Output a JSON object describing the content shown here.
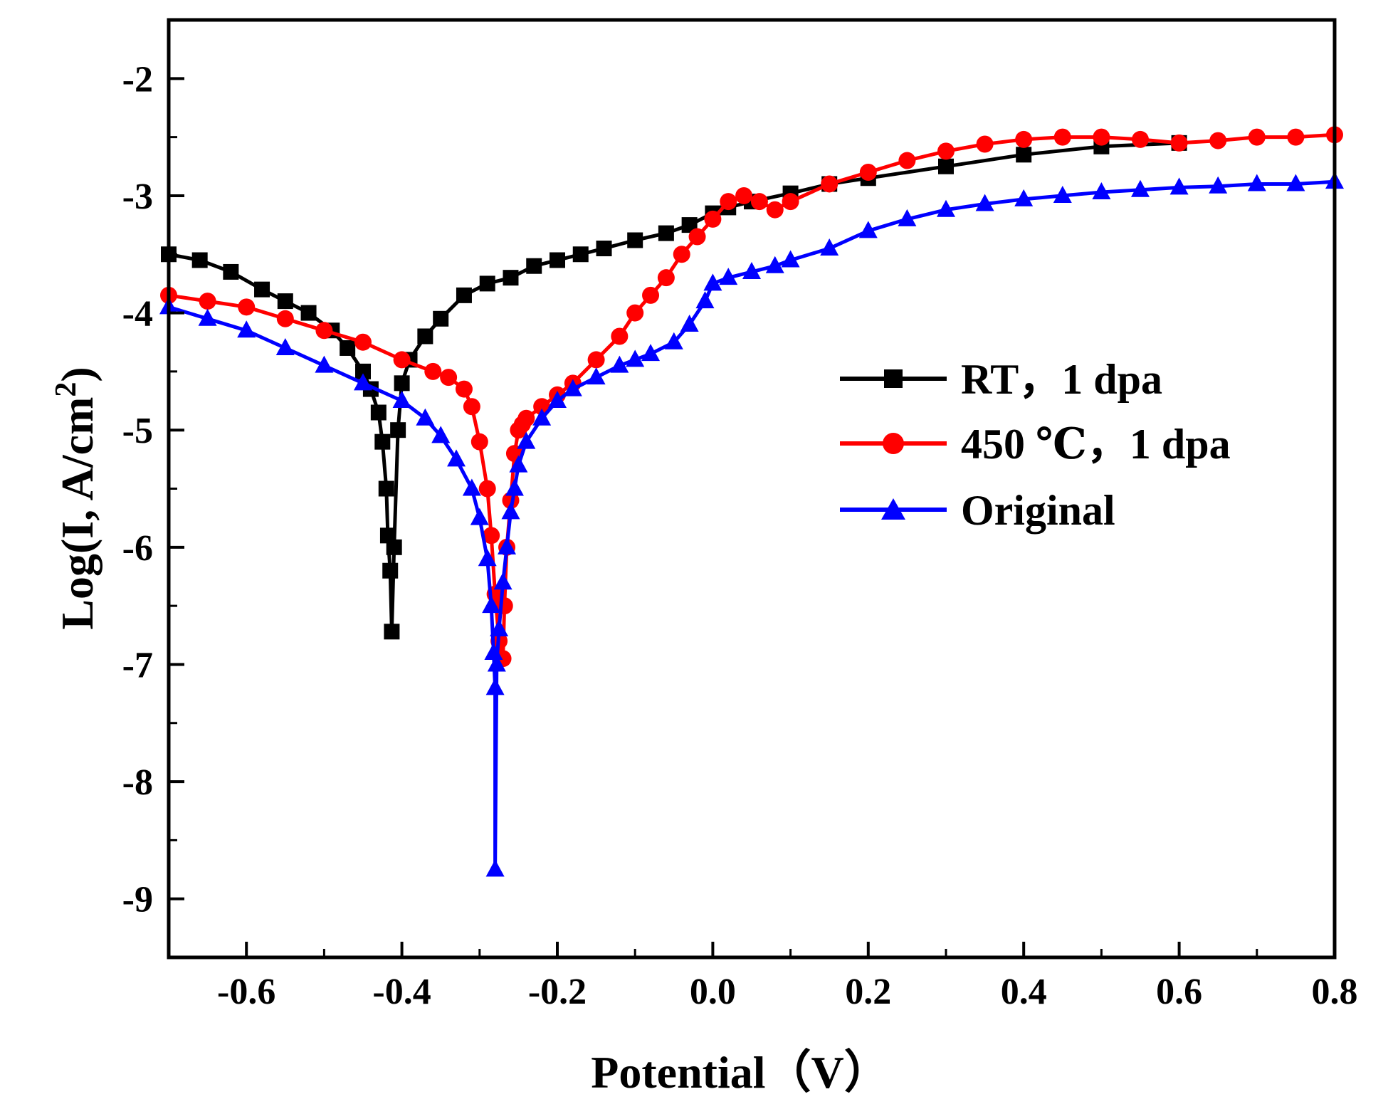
{
  "chart_data": {
    "type": "line",
    "title": "",
    "xlabel": "Potential（V）",
    "ylabel": "Log(I, A/cm2)",
    "ylabel_base": "Log(I, A/cm",
    "ylabel_sup": "2",
    "ylabel_close": ")",
    "xlim": [
      -0.7,
      0.8
    ],
    "ylim": [
      -9.5,
      -1.5
    ],
    "x_ticks": [
      -0.6,
      -0.4,
      -0.2,
      0.0,
      0.2,
      0.4,
      0.6,
      0.8
    ],
    "x_tick_labels": [
      "-0.6",
      "-0.4",
      "-0.2",
      "0.0",
      "0.2",
      "0.4",
      "0.6",
      "0.8"
    ],
    "y_ticks": [
      -9,
      -8,
      -7,
      -6,
      -5,
      -4,
      -3,
      -2
    ],
    "y_tick_labels": [
      "-9",
      "-8",
      "-7",
      "-6",
      "-5",
      "-4",
      "-3",
      "-2"
    ],
    "grid": false,
    "legend_position": "right",
    "series": [
      {
        "name": "RT，1 dpa",
        "color": "#000000",
        "marker": "square",
        "x": [
          -0.7,
          -0.66,
          -0.62,
          -0.58,
          -0.55,
          -0.52,
          -0.49,
          -0.47,
          -0.45,
          -0.44,
          -0.43,
          -0.425,
          -0.42,
          -0.418,
          -0.415,
          -0.413,
          -0.41,
          -0.405,
          -0.4,
          -0.39,
          -0.37,
          -0.35,
          -0.32,
          -0.29,
          -0.26,
          -0.23,
          -0.2,
          -0.17,
          -0.14,
          -0.1,
          -0.06,
          -0.03,
          0.0,
          0.02,
          0.05,
          0.1,
          0.15,
          0.2,
          0.3,
          0.4,
          0.5,
          0.6
        ],
        "y": [
          -3.5,
          -3.55,
          -3.65,
          -3.8,
          -3.9,
          -4.0,
          -4.15,
          -4.3,
          -4.5,
          -4.65,
          -4.85,
          -5.1,
          -5.5,
          -5.9,
          -6.2,
          -6.72,
          -6.0,
          -5.0,
          -4.6,
          -4.4,
          -4.2,
          -4.05,
          -3.85,
          -3.75,
          -3.7,
          -3.6,
          -3.55,
          -3.5,
          -3.45,
          -3.38,
          -3.32,
          -3.25,
          -3.15,
          -3.1,
          -3.05,
          -2.98,
          -2.9,
          -2.85,
          -2.75,
          -2.65,
          -2.58,
          -2.55
        ]
      },
      {
        "name": "450 ℃，1 dpa",
        "color": "#ff0000",
        "marker": "circle",
        "x": [
          -0.7,
          -0.65,
          -0.6,
          -0.55,
          -0.5,
          -0.45,
          -0.4,
          -0.36,
          -0.34,
          -0.32,
          -0.31,
          -0.3,
          -0.29,
          -0.285,
          -0.28,
          -0.275,
          -0.27,
          -0.268,
          -0.265,
          -0.26,
          -0.255,
          -0.25,
          -0.245,
          -0.24,
          -0.22,
          -0.2,
          -0.18,
          -0.15,
          -0.12,
          -0.1,
          -0.08,
          -0.06,
          -0.04,
          -0.02,
          0.0,
          0.02,
          0.04,
          0.06,
          0.08,
          0.1,
          0.15,
          0.2,
          0.25,
          0.3,
          0.35,
          0.4,
          0.45,
          0.5,
          0.55,
          0.6,
          0.65,
          0.7,
          0.75,
          0.8
        ],
        "y": [
          -3.85,
          -3.9,
          -3.95,
          -4.05,
          -4.15,
          -4.25,
          -4.4,
          -4.5,
          -4.55,
          -4.65,
          -4.8,
          -5.1,
          -5.5,
          -5.9,
          -6.4,
          -6.8,
          -6.95,
          -6.5,
          -6.0,
          -5.6,
          -5.2,
          -5.0,
          -4.95,
          -4.9,
          -4.8,
          -4.7,
          -4.6,
          -4.4,
          -4.2,
          -4.0,
          -3.85,
          -3.7,
          -3.5,
          -3.35,
          -3.2,
          -3.05,
          -3.0,
          -3.05,
          -3.12,
          -3.05,
          -2.9,
          -2.8,
          -2.7,
          -2.62,
          -2.56,
          -2.52,
          -2.5,
          -2.5,
          -2.52,
          -2.55,
          -2.53,
          -2.5,
          -2.5,
          -2.48
        ]
      },
      {
        "name": "Original",
        "color": "#0000ff",
        "marker": "triangle",
        "x": [
          -0.7,
          -0.65,
          -0.6,
          -0.55,
          -0.5,
          -0.45,
          -0.4,
          -0.37,
          -0.35,
          -0.33,
          -0.31,
          -0.3,
          -0.29,
          -0.285,
          -0.282,
          -0.28,
          -0.28,
          -0.278,
          -0.275,
          -0.27,
          -0.265,
          -0.26,
          -0.255,
          -0.25,
          -0.24,
          -0.22,
          -0.2,
          -0.18,
          -0.15,
          -0.12,
          -0.1,
          -0.08,
          -0.05,
          -0.03,
          -0.01,
          0.0,
          0.02,
          0.05,
          0.08,
          0.1,
          0.15,
          0.2,
          0.25,
          0.3,
          0.35,
          0.4,
          0.45,
          0.5,
          0.55,
          0.6,
          0.65,
          0.7,
          0.75,
          0.8
        ],
        "y": [
          -3.95,
          -4.05,
          -4.15,
          -4.3,
          -4.45,
          -4.6,
          -4.75,
          -4.9,
          -5.05,
          -5.25,
          -5.5,
          -5.75,
          -6.1,
          -6.5,
          -6.9,
          -7.2,
          -8.75,
          -7.0,
          -6.7,
          -6.3,
          -6.0,
          -5.7,
          -5.5,
          -5.3,
          -5.1,
          -4.9,
          -4.75,
          -4.65,
          -4.55,
          -4.45,
          -4.4,
          -4.35,
          -4.25,
          -4.1,
          -3.9,
          -3.75,
          -3.7,
          -3.65,
          -3.6,
          -3.55,
          -3.45,
          -3.3,
          -3.2,
          -3.12,
          -3.07,
          -3.03,
          -3.0,
          -2.97,
          -2.95,
          -2.93,
          -2.92,
          -2.9,
          -2.9,
          -2.88
        ]
      }
    ]
  }
}
